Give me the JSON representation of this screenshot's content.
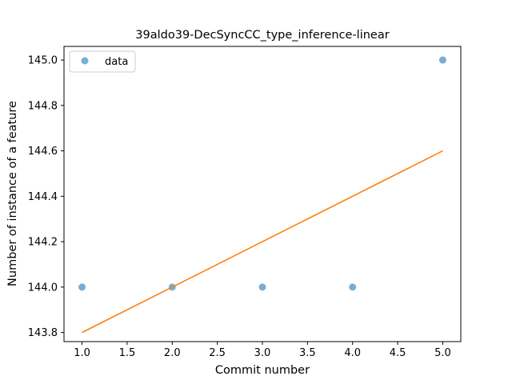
{
  "chart_data": {
    "type": "scatter",
    "title": "39aldo39-DecSyncCC_type_inference-linear",
    "xlabel": "Commit number",
    "ylabel": "Number of instance of a feature",
    "xlim": [
      0.8,
      5.2
    ],
    "ylim": [
      143.76,
      145.06
    ],
    "xticks": [
      1.0,
      1.5,
      2.0,
      2.5,
      3.0,
      3.5,
      4.0,
      4.5,
      5.0
    ],
    "xtick_labels": [
      "1.0",
      "1.5",
      "2.0",
      "2.5",
      "3.0",
      "3.5",
      "4.0",
      "4.5",
      "5.0"
    ],
    "yticks": [
      143.8,
      144.0,
      144.2,
      144.4,
      144.6,
      144.8,
      145.0
    ],
    "ytick_labels": [
      "143.8",
      "144.0",
      "144.2",
      "144.4",
      "144.6",
      "144.8",
      "145.0"
    ],
    "series": [
      {
        "name": "data",
        "kind": "scatter",
        "color": "#1f77b4",
        "x": [
          1,
          2,
          3,
          4,
          5
        ],
        "y": [
          144.0,
          144.0,
          144.0,
          144.0,
          145.0
        ]
      },
      {
        "kind": "line",
        "color": "#ff7f0e",
        "x": [
          1,
          5
        ],
        "y": [
          143.8,
          144.6
        ]
      }
    ],
    "grid": false,
    "legend": "upper left"
  }
}
